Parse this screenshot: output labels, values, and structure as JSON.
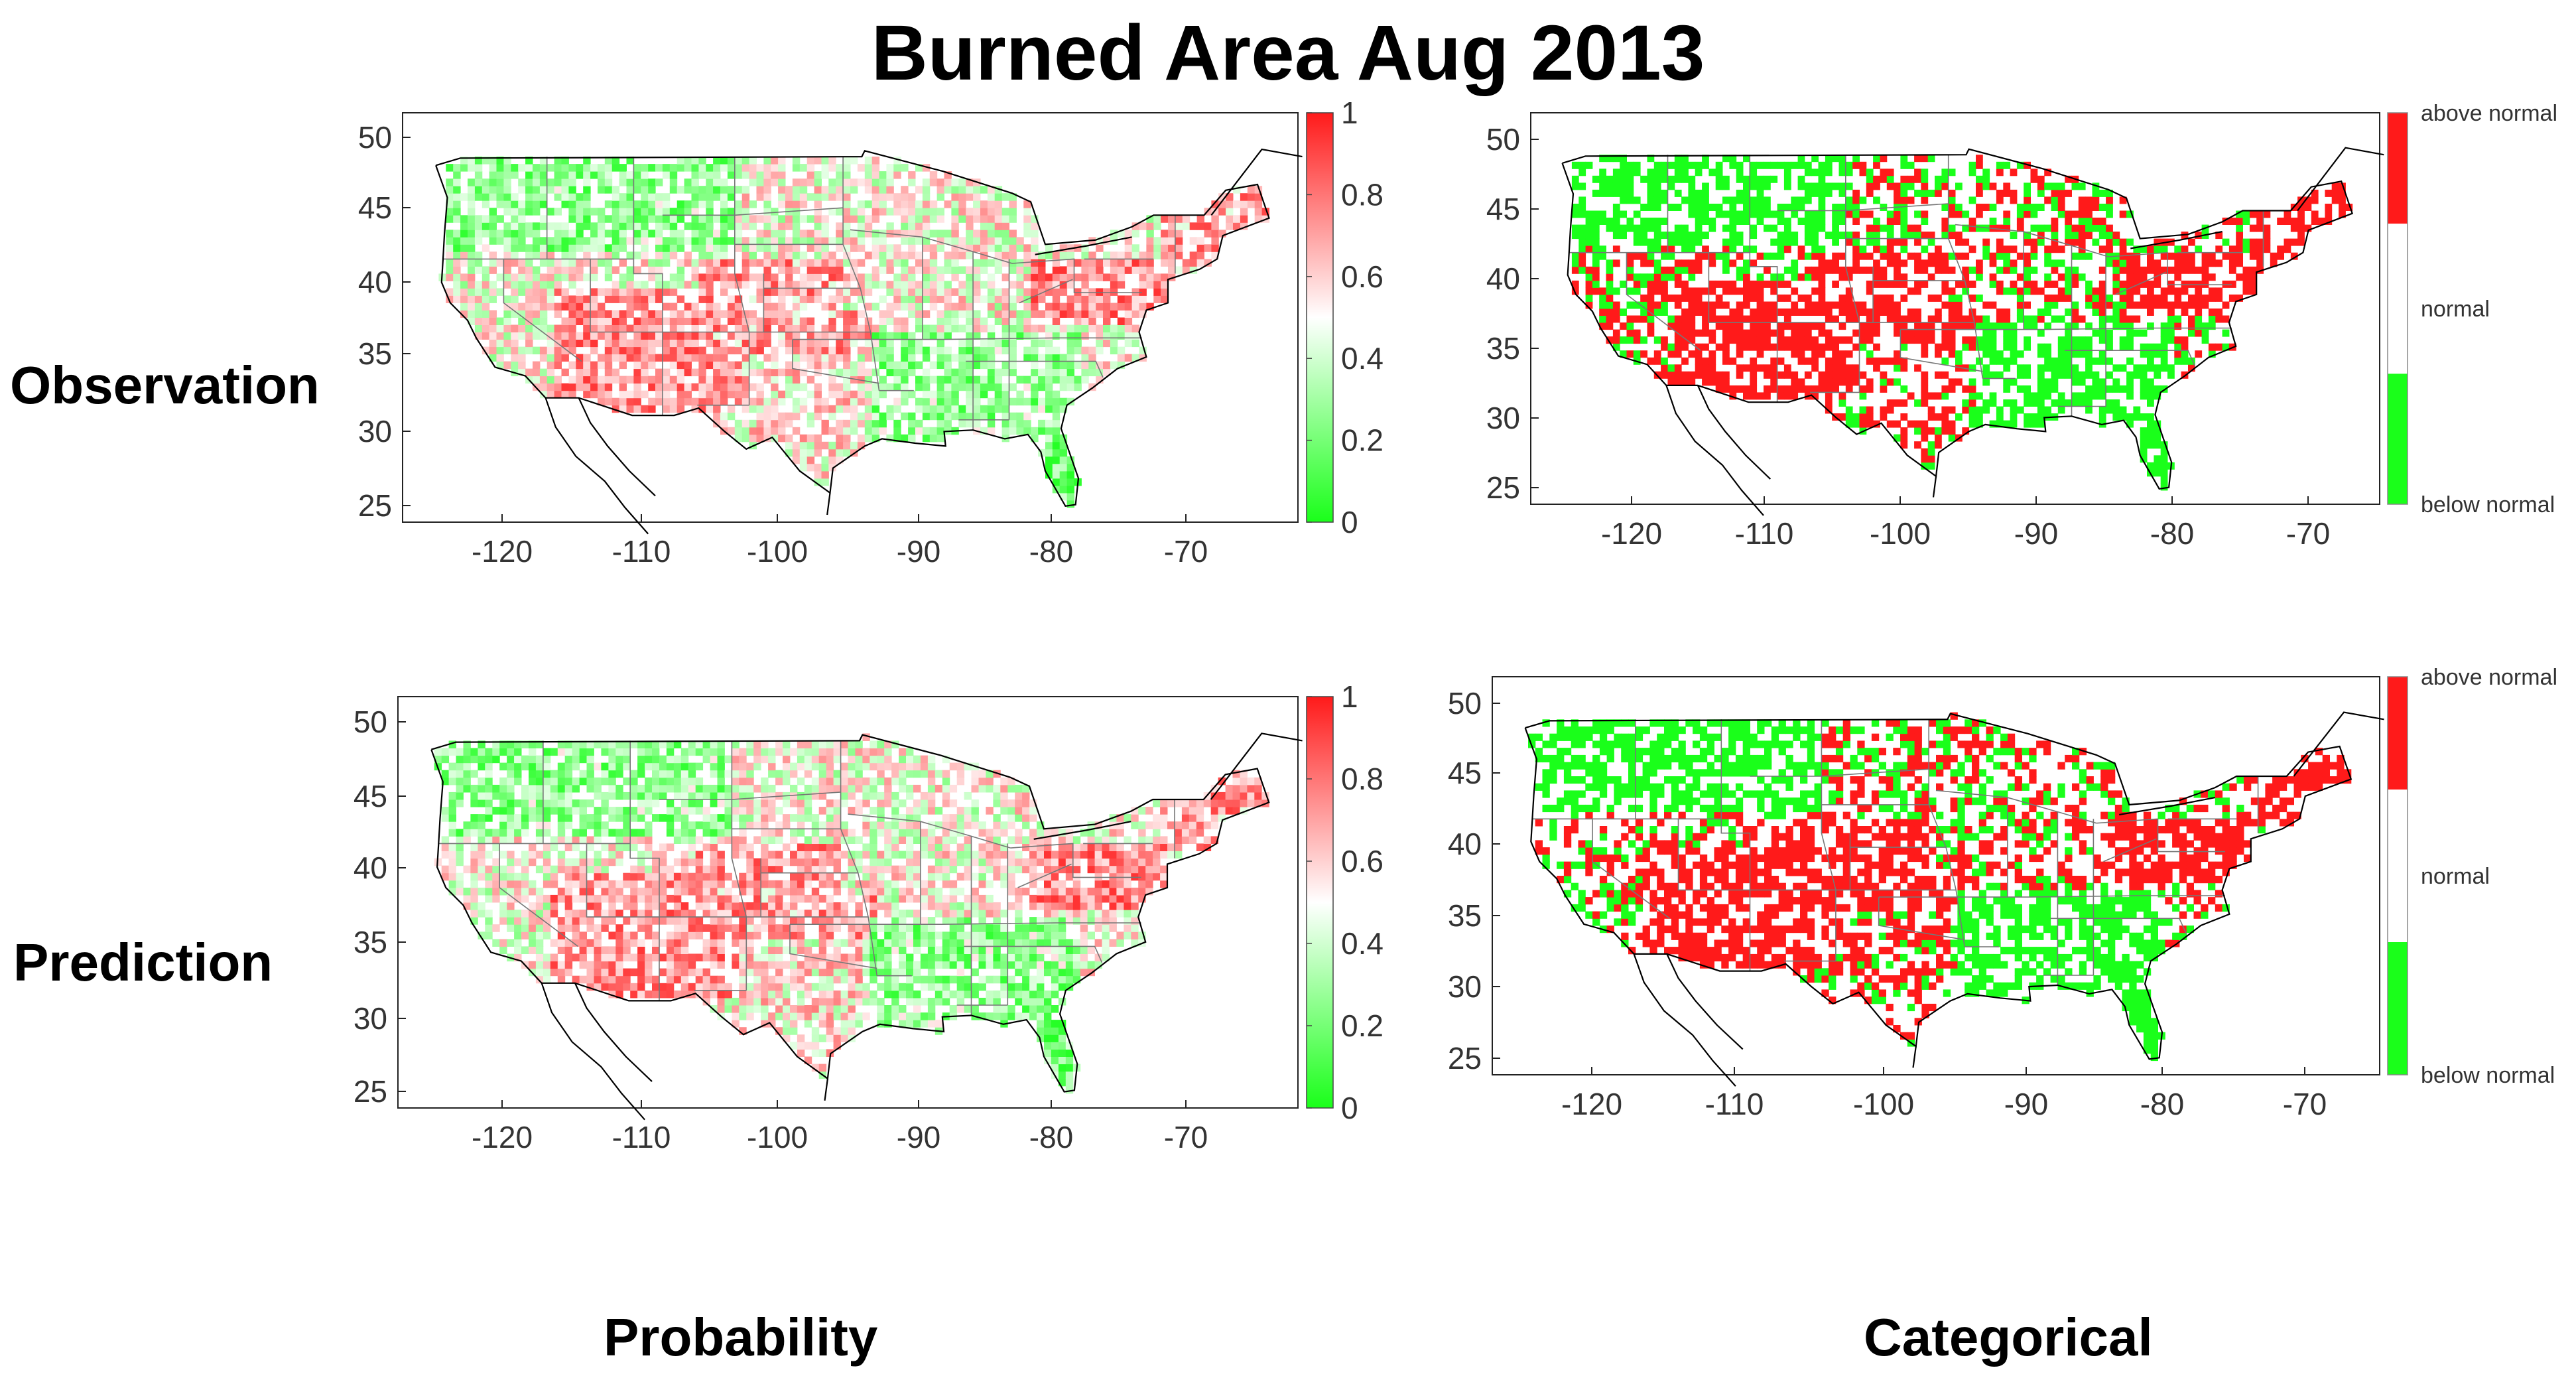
{
  "title": "Burned Area Aug 2013",
  "row_labels": [
    "Observation",
    "Prediction"
  ],
  "col_labels": [
    "Probability",
    "Categorical"
  ],
  "colors": {
    "red": "#ff1a1a",
    "green": "#1aff1a",
    "border": "#000000",
    "state": "#888888"
  },
  "chart_data": [
    {
      "type": "heatmap",
      "panel": "observation-probability",
      "x_ticks": [
        "-120",
        "-110",
        "-100",
        "-90",
        "-80",
        "-70"
      ],
      "y_ticks": [
        "50",
        "45",
        "40",
        "35",
        "30",
        "25"
      ],
      "xlim": [
        -127,
        -65
      ],
      "ylim": [
        24,
        52
      ],
      "colorbar": {
        "ticks": [
          "1",
          "0.8",
          "0.6",
          "0.4",
          "0.2",
          "0"
        ],
        "range": [
          0,
          1
        ]
      }
    },
    {
      "type": "heatmap",
      "panel": "observation-categorical",
      "x_ticks": [
        "-120",
        "-110",
        "-100",
        "-90",
        "-80",
        "-70"
      ],
      "y_ticks": [
        "50",
        "45",
        "40",
        "35",
        "30",
        "25"
      ],
      "xlim": [
        -127,
        -65
      ],
      "ylim": [
        24,
        52
      ],
      "colorbar": {
        "labels": [
          "above normal",
          "normal",
          "below normal"
        ]
      }
    },
    {
      "type": "heatmap",
      "panel": "prediction-probability",
      "x_ticks": [
        "-120",
        "-110",
        "-100",
        "-90",
        "-80",
        "-70"
      ],
      "y_ticks": [
        "50",
        "45",
        "40",
        "35",
        "30",
        "25"
      ],
      "xlim": [
        -127,
        -65
      ],
      "ylim": [
        24,
        52
      ],
      "colorbar": {
        "ticks": [
          "1",
          "0.8",
          "0.6",
          "0.4",
          "0.2",
          "0"
        ],
        "range": [
          0,
          1
        ]
      }
    },
    {
      "type": "heatmap",
      "panel": "prediction-categorical",
      "x_ticks": [
        "-120",
        "-110",
        "-100",
        "-90",
        "-80",
        "-70"
      ],
      "y_ticks": [
        "50",
        "45",
        "40",
        "35",
        "30",
        "25"
      ],
      "xlim": [
        -127,
        -65
      ],
      "ylim": [
        24,
        52
      ],
      "colorbar": {
        "labels": [
          "above normal",
          "normal",
          "below normal"
        ]
      }
    }
  ]
}
